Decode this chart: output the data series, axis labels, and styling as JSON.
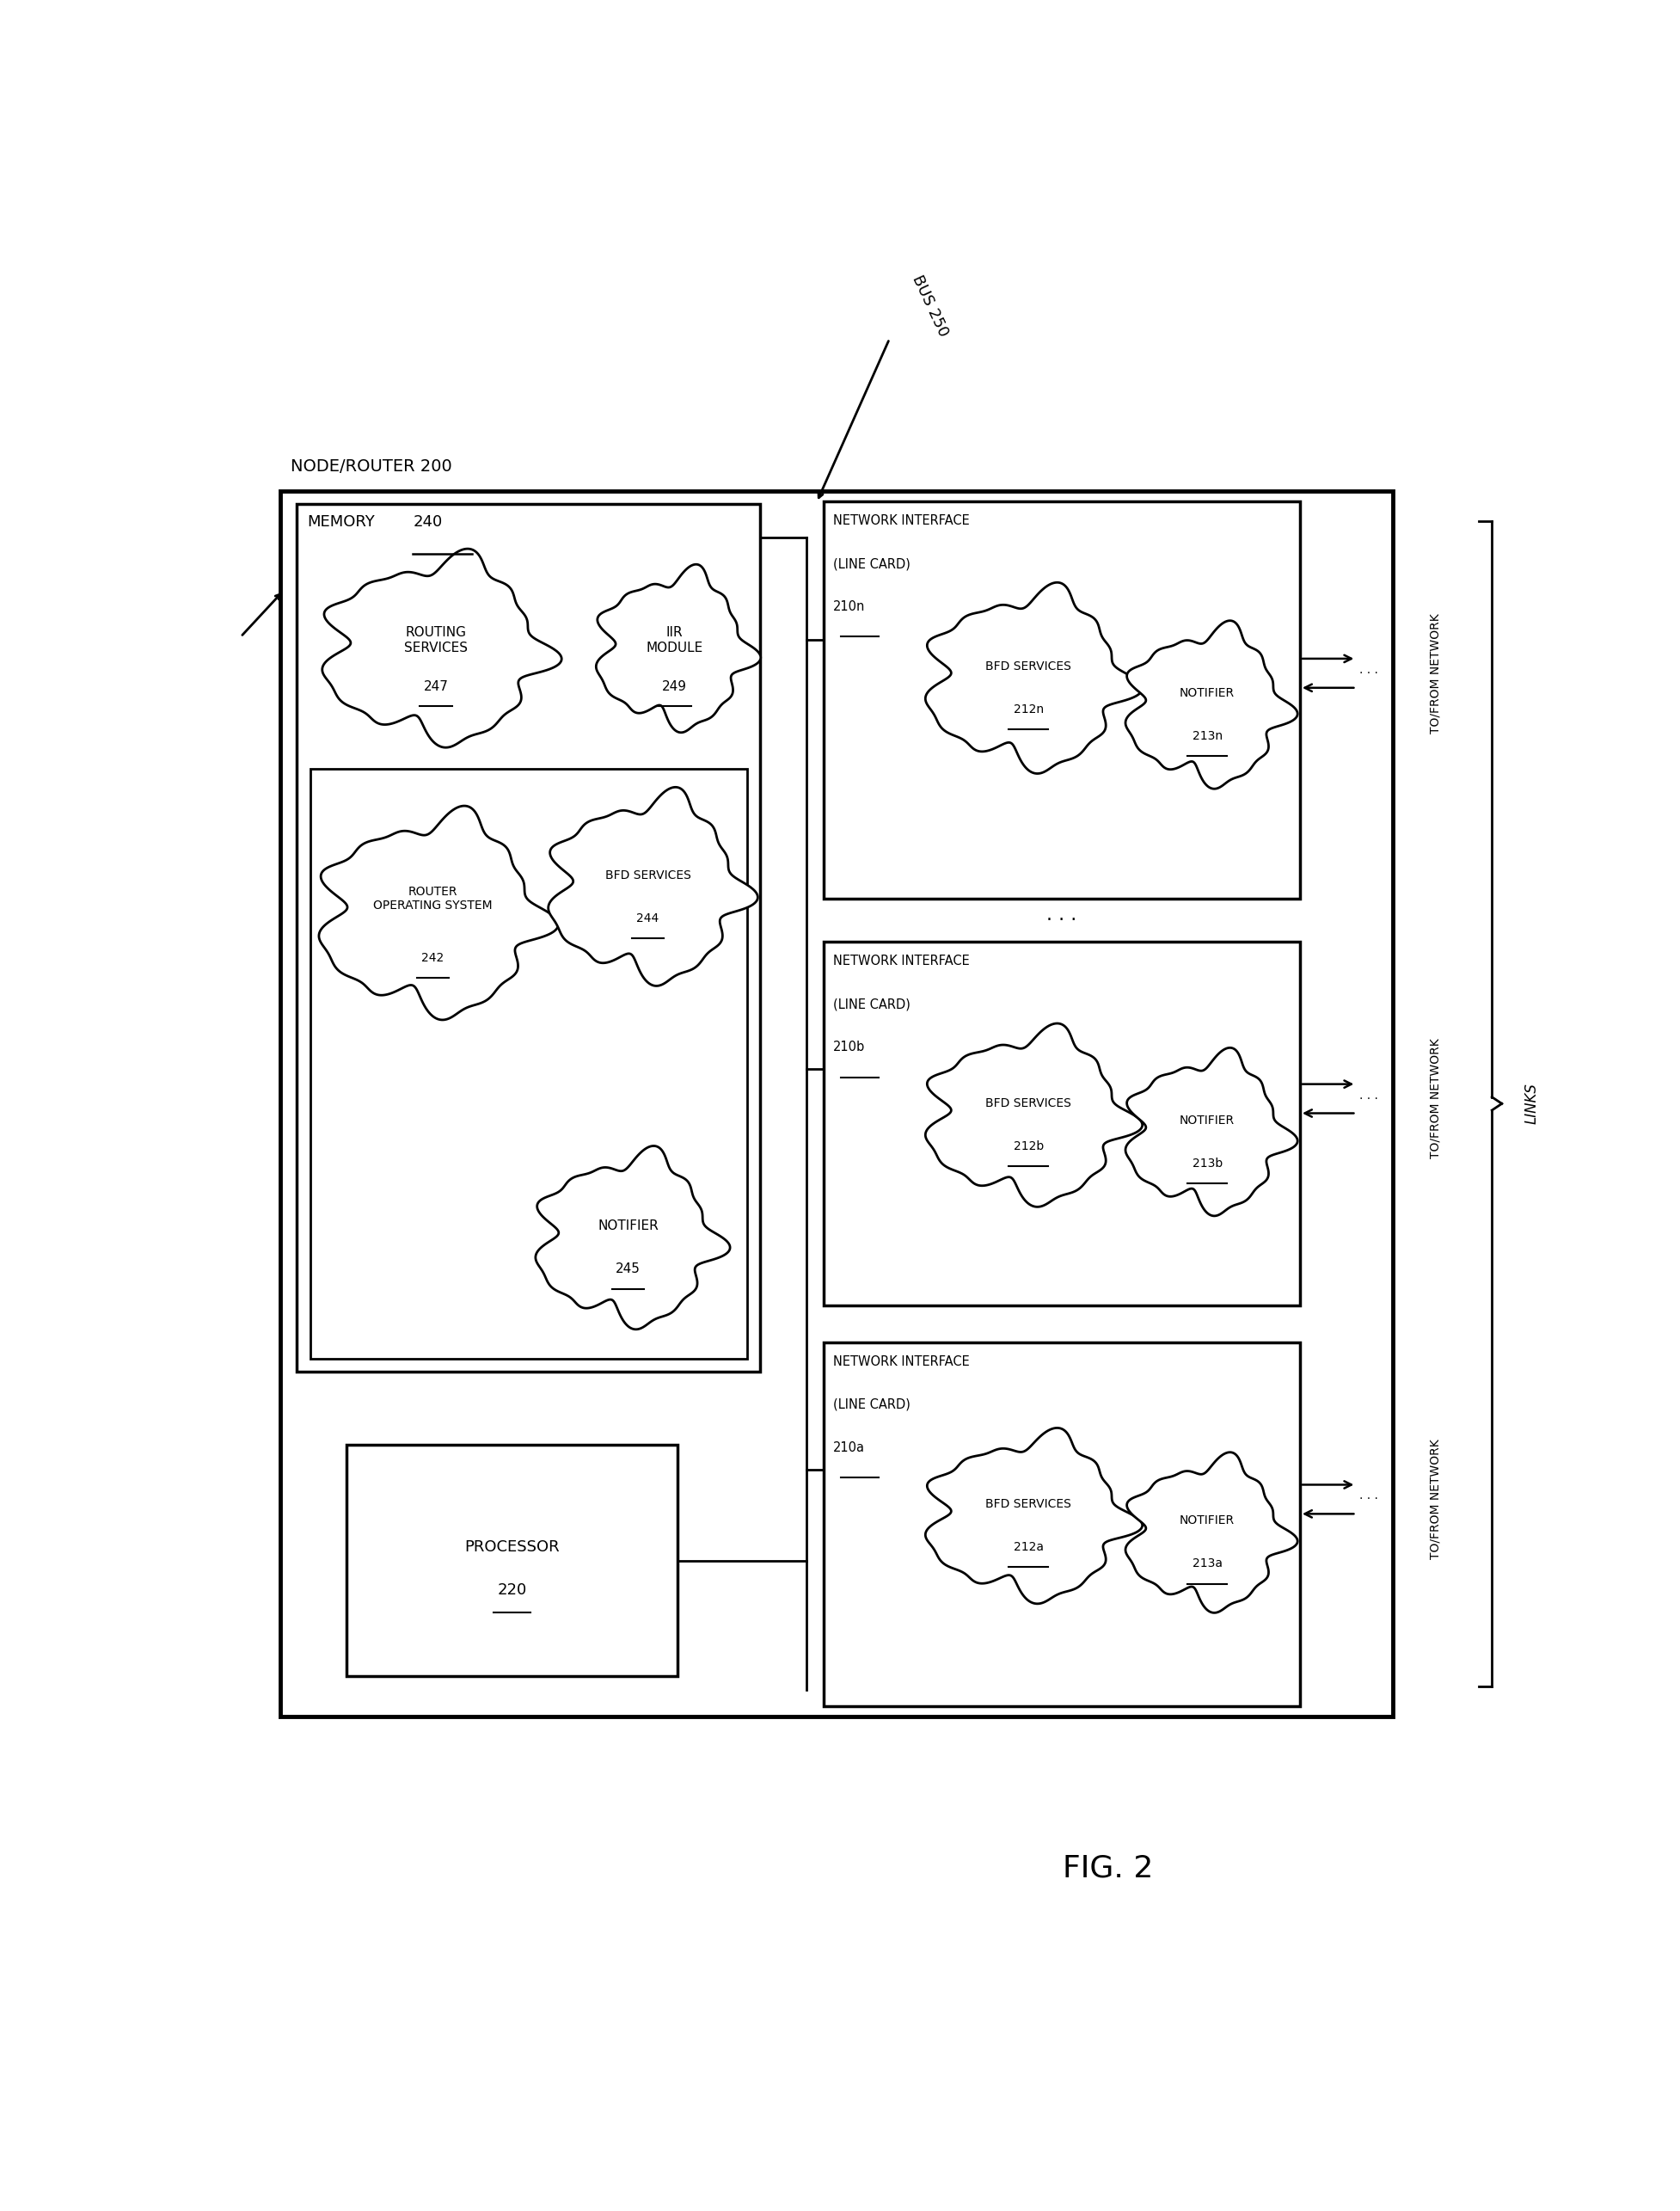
{
  "fig_width": 19.54,
  "fig_height": 25.71,
  "bg_color": "#ffffff",
  "title": "FIG. 2",
  "node_router_label": "NODE/ROUTER 200",
  "bus_label": "BUS 250",
  "processor_label": "PROCESSOR\n220",
  "memory_label": "MEMORY  240",
  "routing_services_label": "ROUTING\nSERVICES\n247",
  "iir_module_label": "IIR\nMODULE\n249",
  "router_os_label": "ROUTER\nOPERATING SYSTEM\n242",
  "bfd_services_mem_label": "BFD SERVICES\n244",
  "notifier_mem_label": "NOTIFIER\n245",
  "ni_a_label": "NETWORK INTERFACE\n(LINE CARD)\n210a",
  "ni_b_label": "NETWORK INTERFACE\n(LINE CARD)\n210b",
  "ni_n_label": "NETWORK INTERFACE\n(LINE CARD)\n210n",
  "bfd_a_label": "BFD SERVICES\n212a",
  "bfd_b_label": "BFD SERVICES\n212b",
  "bfd_n_label": "BFD SERVICES\n212n",
  "notifier_a_label": "NOTIFIER\n213a",
  "notifier_b_label": "NOTIFIER\n213b",
  "notifier_n_label": "NOTIFIER\n213n",
  "to_from_network": "TO/FROM NETWORK",
  "links_label": "LINKS"
}
